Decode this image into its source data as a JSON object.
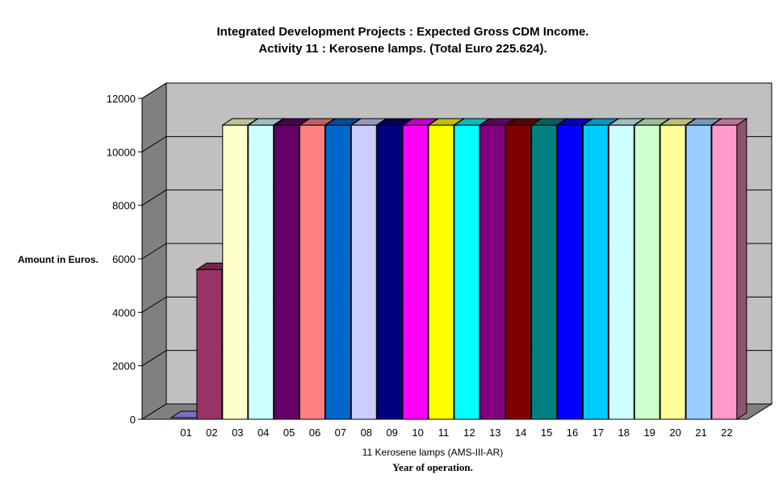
{
  "chart_data": {
    "type": "bar",
    "title": "Integrated Development Projects : Expected Gross CDM Income.",
    "subtitle": "Activity 11 : Kerosene lamps. (Total  Euro 225.624).",
    "ylabel": "Amount in Euros.",
    "xlabel": "11 Kerosene lamps (AMS-III-AR)",
    "xlabel2": "Year of operation.",
    "ylim": [
      0,
      12000
    ],
    "yticks": [
      0,
      2000,
      4000,
      6000,
      8000,
      10000,
      12000
    ],
    "grid": true,
    "categories": [
      "01",
      "02",
      "03",
      "04",
      "05",
      "06",
      "07",
      "08",
      "09",
      "10",
      "11",
      "12",
      "13",
      "14",
      "15",
      "16",
      "17",
      "18",
      "19",
      "20",
      "21",
      "22"
    ],
    "values": [
      0,
      5600,
      11000,
      11000,
      11000,
      11000,
      11000,
      11000,
      11000,
      11000,
      11000,
      11000,
      11000,
      11000,
      11000,
      11000,
      11000,
      11000,
      11000,
      11000,
      11000,
      11000
    ],
    "colors": [
      "#9999ff",
      "#993366",
      "#ffffcc",
      "#ccffff",
      "#660066",
      "#ff8080",
      "#0066cc",
      "#ccccff",
      "#000080",
      "#ff00ff",
      "#ffff00",
      "#00ffff",
      "#800080",
      "#800000",
      "#008080",
      "#0000ff",
      "#00ccff",
      "#ccffff",
      "#ccffcc",
      "#ffff99",
      "#99ccff",
      "#ff99cc"
    ]
  }
}
